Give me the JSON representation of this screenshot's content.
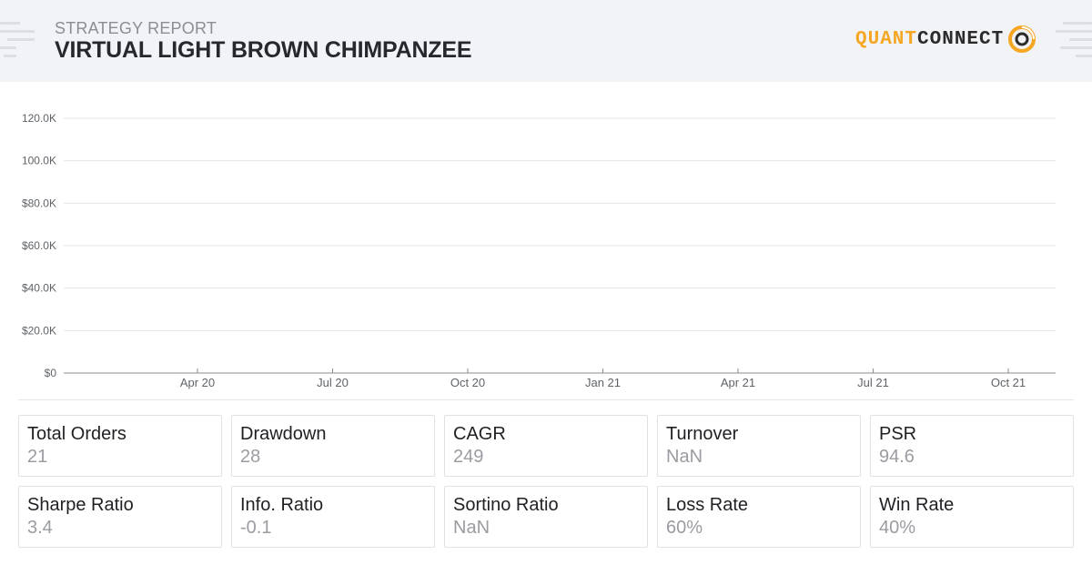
{
  "header": {
    "subtitle": "STRATEGY REPORT",
    "title": "VIRTUAL LIGHT BROWN CHIMPANZEE",
    "logo_part1": "QUANT",
    "logo_part2": "CONNECT",
    "logo_icon": "quantconnect-ring-icon",
    "accent_color": "#f5a623"
  },
  "chart_data": {
    "type": "line",
    "title": "",
    "xlabel": "",
    "ylabel": "",
    "y_ticks": [
      "$0",
      "$20.0K",
      "$40.0K",
      "$60.0K",
      "$80.0K",
      "100.0K",
      "120.0K"
    ],
    "x_ticks": [
      "Apr 20",
      "Jul 20",
      "Oct 20",
      "Jan 21",
      "Apr 21",
      "Jul 21",
      "Oct 21"
    ],
    "ylim": [
      0,
      120000
    ],
    "grid": true,
    "series": []
  },
  "stats": [
    {
      "label": "Total Orders",
      "value": "21"
    },
    {
      "label": "Drawdown",
      "value": "28"
    },
    {
      "label": "CAGR",
      "value": "249"
    },
    {
      "label": "Turnover",
      "value": "NaN"
    },
    {
      "label": "PSR",
      "value": "94.6"
    },
    {
      "label": "Sharpe Ratio",
      "value": "3.4"
    },
    {
      "label": "Info. Ratio",
      "value": "-0.1"
    },
    {
      "label": "Sortino Ratio",
      "value": "NaN"
    },
    {
      "label": "Loss Rate",
      "value": "60%"
    },
    {
      "label": "Win Rate",
      "value": "40%"
    }
  ]
}
